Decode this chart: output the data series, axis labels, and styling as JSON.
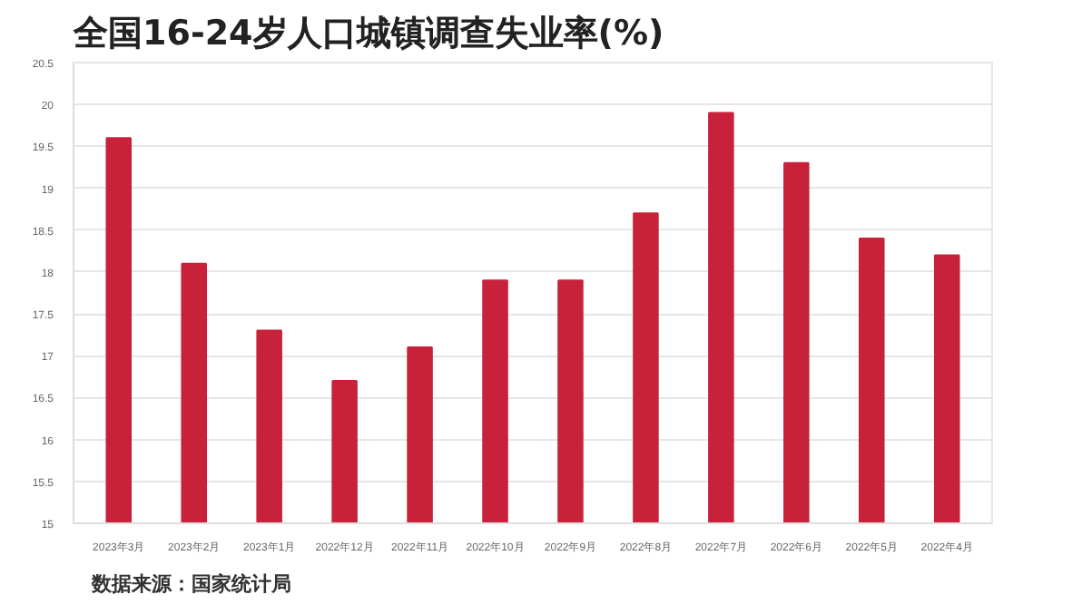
{
  "chart_data": {
    "type": "bar",
    "title": "全国16-24岁人口城镇调查失业率(%)",
    "categories": [
      "2023年3月",
      "2023年2月",
      "2023年1月",
      "2022年12月",
      "2022年11月",
      "2022年10月",
      "2022年9月",
      "2022年8月",
      "2022年7月",
      "2022年6月",
      "2022年5月",
      "2022年4月"
    ],
    "values": [
      19.6,
      18.1,
      17.3,
      16.7,
      17.1,
      17.9,
      17.9,
      18.7,
      19.9,
      19.3,
      18.4,
      18.2
    ],
    "color": "#c8223a",
    "ylim": [
      15,
      20.5
    ],
    "yticks": [
      15,
      15.5,
      16,
      16.5,
      17,
      17.5,
      18,
      18.5,
      19,
      19.5,
      20,
      20.5
    ],
    "grid": "y",
    "annotations": [
      "数据来源：国家统计局"
    ]
  }
}
